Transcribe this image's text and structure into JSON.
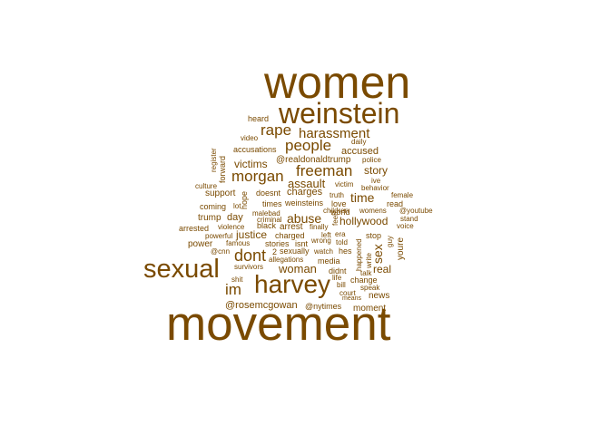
{
  "wordcloud": {
    "color": "#7a4a00",
    "words": {
      "women": "women",
      "weinstein": "weinstein",
      "movement": "movement",
      "sexual": "sexual",
      "harvey": "harvey",
      "rape": "rape",
      "harassment": "harassment",
      "people": "people",
      "freeman": "freeman",
      "morgan": "morgan",
      "dont": "dont",
      "im": "im",
      "woman": "woman",
      "victims": "victims",
      "assault": "assault",
      "abuse": "abuse",
      "story": "story",
      "time": "time",
      "hollywood": "hollywood",
      "justice": "justice",
      "accused": "accused",
      "rosemcgowan": "@rosemcgowan",
      "nytimes": "@nytimes",
      "moment": "moment",
      "news": "news",
      "real": "real",
      "sex": "sex",
      "youre": "youre",
      "heard": "heard",
      "video": "video",
      "daily": "daily",
      "accusations": "accusations",
      "register": "register",
      "forward": "forward",
      "realdonaldtrump": "@realdonaldtrump",
      "police": "police",
      "culture": "culture",
      "victim": "victim",
      "ive": "ive",
      "behavior": "behavior",
      "support": "support",
      "doesnt": "doesnt",
      "charges": "charges",
      "truth": "truth",
      "female": "female",
      "hope": "hope",
      "coming": "coming",
      "lot": "lot",
      "times": "times",
      "weinsteins": "weinsteins",
      "love": "love",
      "read": "read",
      "malebad": "malebad",
      "children": "children",
      "womens": "womens",
      "youtube": "@youtube",
      "trump": "trump",
      "day": "day",
      "criminal": "criminal",
      "feel": "feel",
      "world": "world",
      "stand": "stand",
      "arrested": "arrested",
      "violence": "violence",
      "black": "black",
      "arrest": "arrest",
      "finally": "finally",
      "voice": "voice",
      "powerful": "powerful",
      "charged": "charged",
      "left": "left",
      "era": "era",
      "stop": "stop",
      "power": "power",
      "famous": "famous",
      "stories": "stories",
      "isnt": "isnt",
      "wrong": "wrong",
      "told": "told",
      "guy": "guy",
      "cnn": "@cnn",
      "two": "2",
      "sexually": "sexually",
      "watch": "watch",
      "hes": "hes",
      "happened": "happened",
      "write": "write",
      "allegations": "allegations",
      "media": "media",
      "survivors": "survivors",
      "didnt": "didnt",
      "shit": "shit",
      "life": "life",
      "change": "change",
      "bill": "bill",
      "speak": "speak",
      "talk": "talk",
      "court": "court",
      "means": "means"
    }
  }
}
